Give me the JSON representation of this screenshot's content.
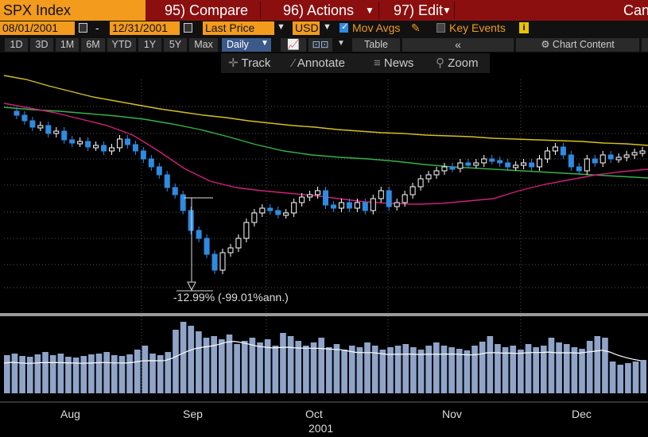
{
  "toolbar": {
    "ticker": "SPX Index",
    "compare": "95) Compare",
    "actions": "96) Actions",
    "edit": "97) Edit",
    "cancel": "Can"
  },
  "controls": {
    "start_date": "08/01/2001",
    "dash": "-",
    "end_date": "12/31/2001",
    "price_field": "Last Price",
    "currency": "USD",
    "mov_avgs": "Mov Avgs",
    "key_events": "Key Events"
  },
  "ranges": [
    "1D",
    "3D",
    "1M",
    "6M",
    "YTD",
    "1Y",
    "5Y",
    "Max"
  ],
  "frequency": "Daily",
  "table_label": "Table",
  "chart_content": "Chart Content",
  "tools": {
    "track": "Track",
    "annotate": "Annotate",
    "news": "News",
    "zoom": "Zoom"
  },
  "annotation": "-12.99% (-99.01%ann.)",
  "months": [
    "Aug",
    "Sep",
    "Oct",
    "Nov",
    "Dec"
  ],
  "year": "2001",
  "colors": {
    "orange": "#f29b1d",
    "red_bar": "#8b0f0f",
    "up_candle": "#ffffff",
    "down_candle": "#2f8be0",
    "ma_yellow": "#d8c020",
    "ma_green": "#34b34a",
    "ma_pink": "#d0207a",
    "volume": "#8fa4c8"
  },
  "chart_data": {
    "type": "candlestick",
    "x_range": [
      "2001-08-01",
      "2001-12-31"
    ],
    "months": [
      "Aug",
      "Sep",
      "Oct",
      "Nov",
      "Dec"
    ],
    "year": "2001",
    "annotation": "-12.99% (-99.01%ann.)",
    "series": [
      {
        "kind": "price-candles",
        "close_path": [
          140,
          145,
          152,
          160,
          158,
          168,
          165,
          176,
          180,
          178,
          185,
          183,
          190,
          186,
          175,
          182,
          190,
          200,
          210,
          220,
          236,
          245,
          265,
          290,
          300,
          320,
          340,
          318,
          312,
          300,
          280,
          268,
          262,
          265,
          270,
          268,
          255,
          248,
          245,
          240,
          258,
          262,
          255,
          262,
          255,
          265,
          250,
          240,
          260,
          255,
          245,
          235,
          225,
          220,
          215,
          210,
          212,
          205,
          207,
          205,
          200,
          202,
          205,
          210,
          208,
          205,
          210,
          200,
          190,
          185,
          195,
          210,
          215,
          200,
          205,
          195,
          200,
          198,
          195,
          192,
          190
        ]
      },
      {
        "kind": "moving-average",
        "color": "yellow",
        "path": [
          95,
          100,
          108,
          115,
          122,
          127,
          132,
          137,
          141,
          145,
          148,
          152,
          155,
          158,
          160,
          163,
          165,
          167,
          168,
          170,
          171,
          172,
          174,
          175,
          176,
          177,
          178,
          180,
          181,
          183
        ]
      },
      {
        "kind": "moving-average",
        "color": "green",
        "path": [
          135,
          138,
          140,
          143,
          146,
          150,
          156,
          163,
          172,
          182,
          190,
          195,
          198,
          200,
          203,
          207,
          210,
          212,
          214,
          216,
          218,
          220,
          222,
          224
        ]
      },
      {
        "kind": "moving-average",
        "color": "pink",
        "path": [
          130,
          136,
          142,
          150,
          158,
          170,
          190,
          212,
          228,
          236,
          240,
          243,
          246,
          250,
          254,
          256,
          257,
          256,
          253,
          250,
          240,
          232,
          226,
          220,
          216,
          213
        ]
      },
      {
        "kind": "volume-bars",
        "heights": [
          48,
          50,
          47,
          46,
          49,
          52,
          48,
          50,
          46,
          45,
          47,
          49,
          50,
          52,
          48,
          47,
          49,
          55,
          60,
          50,
          48,
          52,
          80,
          90,
          85,
          78,
          70,
          72,
          68,
          74,
          62,
          66,
          70,
          64,
          68,
          60,
          76,
          72,
          66,
          60,
          64,
          70,
          58,
          62,
          55,
          60,
          58,
          64,
          60,
          55,
          58,
          60,
          62,
          58,
          55,
          60,
          64,
          60,
          58,
          56,
          54,
          60,
          65,
          72,
          62,
          58,
          60,
          55,
          62,
          58,
          60,
          70,
          64,
          62,
          58,
          56,
          66,
          72,
          70,
          40,
          36,
          38,
          40,
          42
        ]
      }
    ]
  }
}
